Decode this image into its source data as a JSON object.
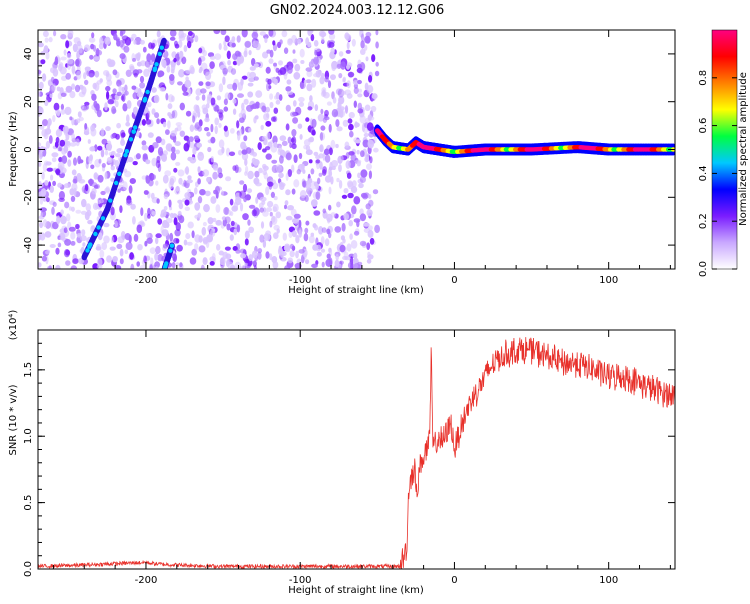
{
  "figure": {
    "title": "GN02.2024.003.12.12.G06"
  },
  "chart_data": [
    {
      "type": "heatmap",
      "xlabel": "Height of straight line (km)",
      "ylabel": "Frequency (Hz)",
      "xlim": [
        -270,
        143
      ],
      "ylim": [
        -50,
        50
      ],
      "x_ticks": [
        -200,
        -100,
        0,
        100
      ],
      "x_tick_labels": [
        "-200",
        "-100",
        "0",
        "100"
      ],
      "y_ticks": [
        -40,
        -20,
        0,
        20,
        40
      ],
      "y_tick_labels": [
        "-40",
        "-20",
        "0",
        "20",
        "40"
      ],
      "noise_region": {
        "x_range": [
          -270,
          -50
        ],
        "density": "high",
        "amplitude": "low (0.0–0.2)"
      },
      "tracks": [
        {
          "name": "",
          "points": [
            [
              -240,
              -45
            ],
            [
              -225,
              -25
            ],
            [
              -212,
              0
            ],
            [
              -200,
              22
            ],
            [
              -188,
              46
            ]
          ]
        },
        {
          "name": "",
          "points": [
            [
              -188,
              -50
            ],
            [
              -183,
              -40
            ]
          ]
        },
        {
          "name": "",
          "points": [
            [
              -50,
              8
            ],
            [
              -45,
              4
            ],
            [
              -40,
              1
            ],
            [
              -30,
              0
            ],
            [
              -25,
              3
            ],
            [
              -20,
              1
            ],
            [
              -10,
              0
            ],
            [
              0,
              -1
            ],
            [
              20,
              0
            ],
            [
              50,
              0
            ],
            [
              80,
              1
            ],
            [
              100,
              0
            ],
            [
              143,
              0
            ]
          ]
        }
      ],
      "colorbar": {
        "label": "Normalized spectral amplitude",
        "range": [
          0,
          1
        ],
        "ticks": [
          0.0,
          0.2,
          0.4,
          0.6,
          0.8
        ],
        "tick_labels": [
          "0.0",
          "0.2",
          "0.4",
          "0.6",
          "0.8"
        ],
        "colors": [
          "#ffffff",
          "#c9a8ff",
          "#7a1cff",
          "#0000ff",
          "#00c8ff",
          "#00ff40",
          "#ffff00",
          "#ff8000",
          "#ff0000",
          "#ff0080"
        ]
      },
      "grid": false
    },
    {
      "type": "line",
      "xlabel": "Height of straight line (km)",
      "ylabel": "SNR (10 * v/v)",
      "y_multiplier": "(x10⁴)",
      "xlim": [
        -270,
        143
      ],
      "ylim": [
        0,
        1.8
      ],
      "x_ticks": [
        -200,
        -100,
        0,
        100
      ],
      "x_tick_labels": [
        "-200",
        "-100",
        "0",
        "100"
      ],
      "y_ticks": [
        0,
        0.5,
        1,
        1.5
      ],
      "y_tick_labels": [
        "0.0",
        "0.5",
        "1.0",
        "1.5"
      ],
      "series": [
        {
          "name": "",
          "color": "#e8302a",
          "x": [
            -270,
            -240,
            -200,
            -195,
            -180,
            -150,
            -100,
            -60,
            -35,
            -31,
            -30,
            -29,
            -28,
            -26,
            -24,
            -22,
            -20,
            -18,
            -16,
            -15,
            -14,
            -12,
            -10,
            -8,
            -6,
            -4,
            -2,
            0,
            5,
            10,
            15,
            20,
            25,
            30,
            40,
            50,
            60,
            70,
            80,
            90,
            100,
            110,
            120,
            130,
            143
          ],
          "y": [
            0.02,
            0.03,
            0.05,
            0.04,
            0.03,
            0.02,
            0.02,
            0.02,
            0.02,
            0.15,
            0.5,
            0.65,
            0.7,
            0.75,
            0.6,
            0.8,
            0.85,
            0.9,
            0.95,
            1.7,
            0.9,
            0.95,
            1.0,
            0.95,
            1.0,
            1.05,
            1.1,
            0.9,
            1.1,
            1.25,
            1.35,
            1.45,
            1.55,
            1.6,
            1.65,
            1.65,
            1.6,
            1.55,
            1.55,
            1.5,
            1.45,
            1.45,
            1.4,
            1.35,
            1.3
          ]
        }
      ]
    }
  ]
}
